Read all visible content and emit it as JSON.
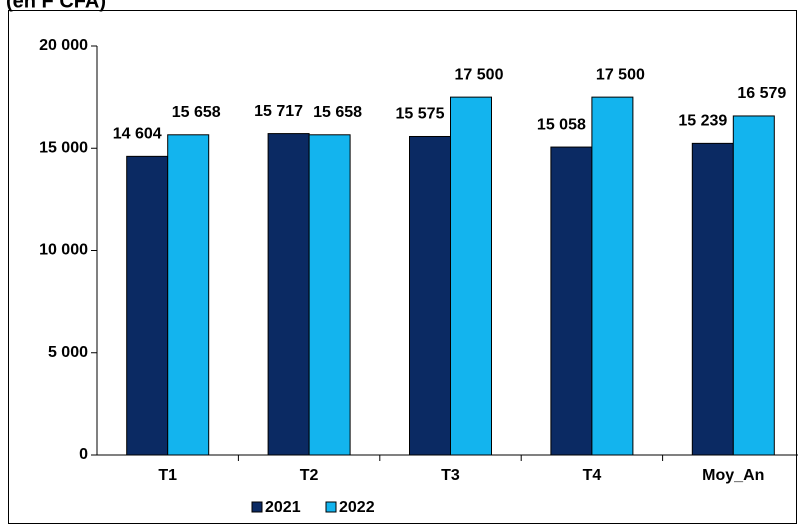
{
  "chart_data": {
    "type": "bar",
    "title": "(en F CFA)",
    "categories": [
      "T1",
      "T2",
      "T3",
      "T4",
      "Moy_An"
    ],
    "series": [
      {
        "name": "2021",
        "color": "#0b2a63",
        "values": [
          14604,
          15717,
          15575,
          15058,
          15239
        ],
        "value_labels": [
          "14 604",
          "15 717",
          "15 575",
          "15 058",
          "15 239"
        ]
      },
      {
        "name": "2022",
        "color": "#13b4ee",
        "values": [
          15658,
          15658,
          17500,
          17500,
          16579
        ],
        "value_labels": [
          "15 658",
          "15 658",
          "17 500",
          "17 500",
          "16 579"
        ]
      }
    ],
    "ylim": [
      0,
      20000
    ],
    "yticks": [
      0,
      {
        "value": 5000,
        "label": "5 000"
      },
      {
        "value": 10000,
        "label": "10 000"
      },
      {
        "value": 15000,
        "label": "15 000"
      },
      {
        "value": 20000,
        "label": "20 000"
      }
    ],
    "grid": false,
    "legend": "bottom"
  }
}
